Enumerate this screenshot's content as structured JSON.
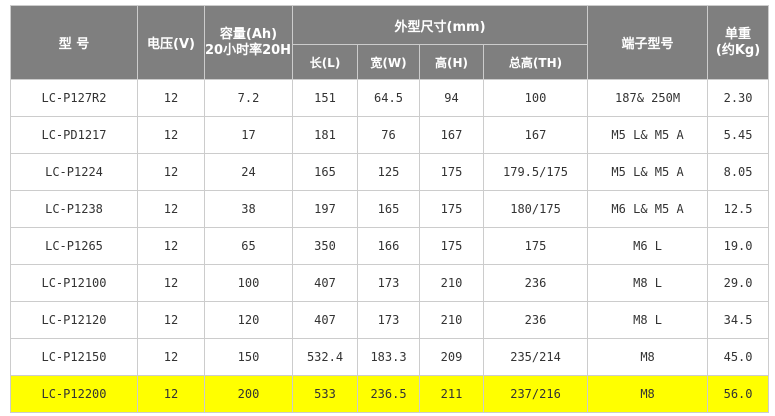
{
  "table": {
    "headers": {
      "model": "型 号",
      "voltage": "电压(V)",
      "capacity_top": "容量(Ah)",
      "capacity_bottom": "20小时率20HR",
      "dimensions": "外型尺寸(mm)",
      "length": "长(L)",
      "width": "宽(W)",
      "height": "高(H)",
      "total_height": "总高(TH)",
      "terminal": "端子型号",
      "unit_weight_top": "单重",
      "unit_weight_bottom": "(约Kg)"
    },
    "rows": [
      {
        "model": "LC-P127R2",
        "voltage": "12",
        "capacity": "7.2",
        "length": "151",
        "width": "64.5",
        "height": "94",
        "total_height": "100",
        "terminal": "187& 250M",
        "weight": "2.30",
        "highlight": false
      },
      {
        "model": "LC-PD1217",
        "voltage": "12",
        "capacity": "17",
        "length": "181",
        "width": "76",
        "height": "167",
        "total_height": "167",
        "terminal": "M5 L& M5 A",
        "weight": "5.45",
        "highlight": false
      },
      {
        "model": "LC-P1224",
        "voltage": "12",
        "capacity": "24",
        "length": "165",
        "width": "125",
        "height": "175",
        "total_height": "179.5/175",
        "terminal": "M5 L& M5 A",
        "weight": "8.05",
        "highlight": false
      },
      {
        "model": "LC-P1238",
        "voltage": "12",
        "capacity": "38",
        "length": "197",
        "width": "165",
        "height": "175",
        "total_height": "180/175",
        "terminal": "M6 L& M5 A",
        "weight": "12.5",
        "highlight": false
      },
      {
        "model": "LC-P1265",
        "voltage": "12",
        "capacity": "65",
        "length": "350",
        "width": "166",
        "height": "175",
        "total_height": "175",
        "terminal": "M6 L",
        "weight": "19.0",
        "highlight": false
      },
      {
        "model": "LC-P12100",
        "voltage": "12",
        "capacity": "100",
        "length": "407",
        "width": "173",
        "height": "210",
        "total_height": "236",
        "terminal": "M8 L",
        "weight": "29.0",
        "highlight": false
      },
      {
        "model": "LC-P12120",
        "voltage": "12",
        "capacity": "120",
        "length": "407",
        "width": "173",
        "height": "210",
        "total_height": "236",
        "terminal": "M8 L",
        "weight": "34.5",
        "highlight": false
      },
      {
        "model": "LC-P12150",
        "voltage": "12",
        "capacity": "150",
        "length": "532.4",
        "width": "183.3",
        "height": "209",
        "total_height": "235/214",
        "terminal": "M8",
        "weight": "45.0",
        "highlight": false
      },
      {
        "model": "LC-P12200",
        "voltage": "12",
        "capacity": "200",
        "length": "533",
        "width": "236.5",
        "height": "211",
        "total_height": "237/216",
        "terminal": "M8",
        "weight": "56.0",
        "highlight": true
      }
    ]
  },
  "colors": {
    "header_bg": "#7f7f7f",
    "header_text": "#ffffff",
    "highlight_row": "#ffff00",
    "border": "#cccccc"
  }
}
